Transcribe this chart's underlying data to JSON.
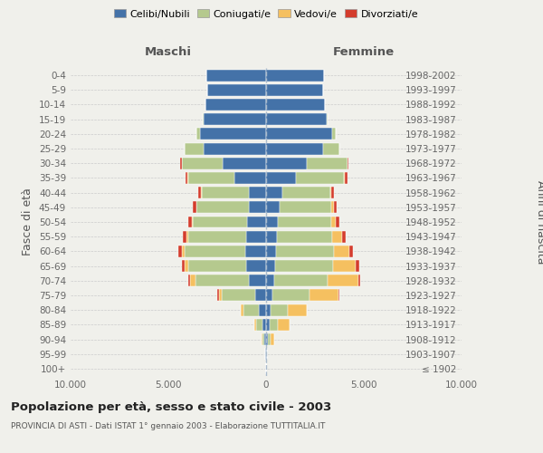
{
  "age_groups": [
    "100+",
    "95-99",
    "90-94",
    "85-89",
    "80-84",
    "75-79",
    "70-74",
    "65-69",
    "60-64",
    "55-59",
    "50-54",
    "45-49",
    "40-44",
    "35-39",
    "30-34",
    "25-29",
    "20-24",
    "15-19",
    "10-14",
    "5-9",
    "0-4"
  ],
  "birth_years": [
    "≤ 1902",
    "1903-1907",
    "1908-1912",
    "1913-1917",
    "1918-1922",
    "1923-1927",
    "1928-1932",
    "1933-1937",
    "1938-1942",
    "1943-1947",
    "1948-1952",
    "1953-1957",
    "1958-1962",
    "1963-1967",
    "1968-1972",
    "1973-1977",
    "1978-1982",
    "1983-1987",
    "1988-1992",
    "1993-1997",
    "1998-2002"
  ],
  "male": {
    "celibi": [
      10,
      30,
      80,
      180,
      380,
      550,
      900,
      1000,
      1050,
      1000,
      950,
      900,
      900,
      1600,
      2200,
      3200,
      3400,
      3200,
      3100,
      3000,
      3050
    ],
    "coniugati": [
      5,
      20,
      100,
      320,
      780,
      1700,
      2700,
      3000,
      3100,
      3000,
      2800,
      2650,
      2400,
      2400,
      2100,
      950,
      150,
      30,
      5,
      3,
      2
    ],
    "vedovi": [
      3,
      8,
      40,
      90,
      130,
      180,
      280,
      180,
      140,
      90,
      50,
      35,
      25,
      15,
      8,
      4,
      3,
      2,
      1,
      1,
      1
    ],
    "divorziati": [
      1,
      3,
      4,
      8,
      20,
      50,
      90,
      140,
      190,
      190,
      170,
      150,
      130,
      110,
      70,
      15,
      8,
      4,
      2,
      1,
      1
    ]
  },
  "female": {
    "nubili": [
      8,
      25,
      70,
      180,
      250,
      320,
      430,
      470,
      530,
      540,
      580,
      680,
      820,
      1550,
      2100,
      2900,
      3400,
      3100,
      3000,
      2900,
      2950
    ],
    "coniugate": [
      5,
      20,
      140,
      430,
      850,
      1900,
      2700,
      2950,
      2950,
      2850,
      2750,
      2650,
      2450,
      2450,
      2050,
      850,
      150,
      30,
      5,
      3,
      2
    ],
    "vedove": [
      4,
      18,
      200,
      600,
      980,
      1480,
      1580,
      1180,
      780,
      480,
      240,
      140,
      70,
      40,
      15,
      8,
      4,
      2,
      1,
      1,
      1
    ],
    "divorziate": [
      1,
      3,
      4,
      8,
      25,
      70,
      120,
      165,
      190,
      190,
      170,
      150,
      140,
      140,
      70,
      15,
      8,
      4,
      2,
      1,
      1
    ]
  },
  "colors": {
    "celibi": "#4472a8",
    "coniugati": "#b5c98e",
    "vedovi": "#f5c060",
    "divorziati": "#d43c2c"
  },
  "xlim": 10000,
  "xticklabels": [
    "10.000",
    "5.000",
    "0",
    "5.000",
    "10.000"
  ],
  "title": "Popolazione per età, sesso e stato civile - 2003",
  "subtitle": "PROVINCIA DI ASTI - Dati ISTAT 1° gennaio 2003 - Elaborazione TUTTITALIA.IT",
  "ylabel_left": "Fasce di età",
  "ylabel_right": "Anni di nascita",
  "label_maschi": "Maschi",
  "label_femmine": "Femmine",
  "legend_labels": [
    "Celibi/Nubili",
    "Coniugati/e",
    "Vedovi/e",
    "Divorziati/e"
  ],
  "bg_color": "#f0f0eb"
}
